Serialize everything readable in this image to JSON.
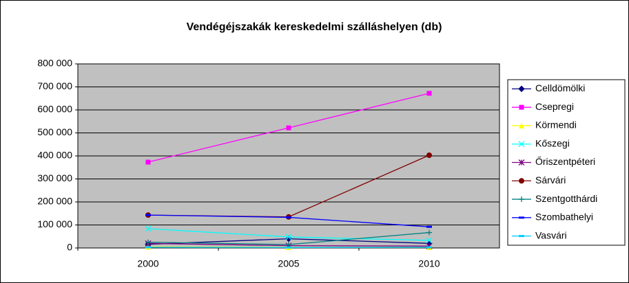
{
  "chart_data": {
    "type": "line",
    "title": "Vendégéjszakák kereskedelmi szálláshelyen (db)",
    "categories": [
      "2000",
      "2005",
      "2010"
    ],
    "series": [
      {
        "name": "Celldömölki",
        "color": "#000080",
        "marker": "diamond",
        "values": [
          16000,
          40000,
          20000
        ]
      },
      {
        "name": "Csepregi",
        "color": "#ff00ff",
        "marker": "square",
        "values": [
          373000,
          522000,
          672000
        ]
      },
      {
        "name": "Körmendi",
        "color": "#ffff00",
        "marker": "triangle",
        "values": [
          5000,
          3000,
          3000
        ]
      },
      {
        "name": "Kőszegi",
        "color": "#00ffff",
        "marker": "x",
        "values": [
          84000,
          48000,
          33000
        ]
      },
      {
        "name": "Őriszentpéteri",
        "color": "#800080",
        "marker": "star",
        "values": [
          20000,
          10000,
          8000
        ]
      },
      {
        "name": "Sárvári",
        "color": "#800000",
        "marker": "circle",
        "values": [
          143000,
          135000,
          403000
        ]
      },
      {
        "name": "Szentgotthárdi",
        "color": "#008080",
        "marker": "plus",
        "values": [
          25000,
          15000,
          67000
        ]
      },
      {
        "name": "Szombathelyi",
        "color": "#0000ff",
        "marker": "dash",
        "values": [
          143000,
          133000,
          92000
        ]
      },
      {
        "name": "Vasvári",
        "color": "#00ccff",
        "marker": "dash",
        "values": [
          3000,
          2000,
          3000
        ]
      }
    ],
    "ylim": [
      0,
      800000
    ],
    "yticks": [
      {
        "value": 0,
        "label": "0"
      },
      {
        "value": 100000,
        "label": "100 000"
      },
      {
        "value": 200000,
        "label": "200 000"
      },
      {
        "value": 300000,
        "label": "300 000"
      },
      {
        "value": 400000,
        "label": "400 000"
      },
      {
        "value": 500000,
        "label": "500 000"
      },
      {
        "value": 600000,
        "label": "600 000"
      },
      {
        "value": 700000,
        "label": "700 000"
      },
      {
        "value": 800000,
        "label": "800 000"
      }
    ],
    "grid": true,
    "plot_background": "#c0c0c0",
    "legend": "right"
  }
}
